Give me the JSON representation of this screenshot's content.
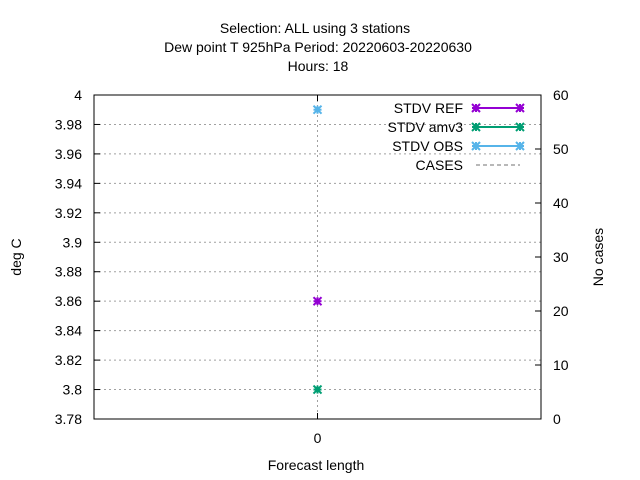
{
  "chart_data": {
    "type": "scatter",
    "title_lines": [
      "Selection: ALL using     3 stations",
      "Dew point T 925hPa   Period: 20220603-20220630",
      "Hours:  18"
    ],
    "xlabel": "Forecast length",
    "ylabel": "deg C",
    "y2label": "No cases",
    "x_ticks": [
      0
    ],
    "xlim": [
      -1,
      1
    ],
    "ylim": [
      3.78,
      4.0
    ],
    "y_ticks": [
      3.78,
      3.8,
      3.82,
      3.84,
      3.86,
      3.88,
      3.9,
      3.92,
      3.94,
      3.96,
      3.98,
      4
    ],
    "y2lim": [
      0,
      60
    ],
    "y2_ticks": [
      0,
      10,
      20,
      30,
      40,
      50,
      60
    ],
    "grid": true,
    "legend_position": "top-right",
    "series": [
      {
        "name": "STDV REF",
        "color": "#9400d3",
        "x": [
          0
        ],
        "y": [
          3.86
        ],
        "axis": "y"
      },
      {
        "name": "STDV amv3",
        "color": "#009e73",
        "x": [
          0
        ],
        "y": [
          3.8
        ],
        "axis": "y"
      },
      {
        "name": "STDV OBS",
        "color": "#56b4e9",
        "x": [
          0
        ],
        "y": [
          3.99
        ],
        "axis": "y"
      },
      {
        "name": "CASES",
        "color": "#a0a0a0",
        "x": [],
        "y": [],
        "axis": "y2",
        "dashed": true
      }
    ]
  }
}
